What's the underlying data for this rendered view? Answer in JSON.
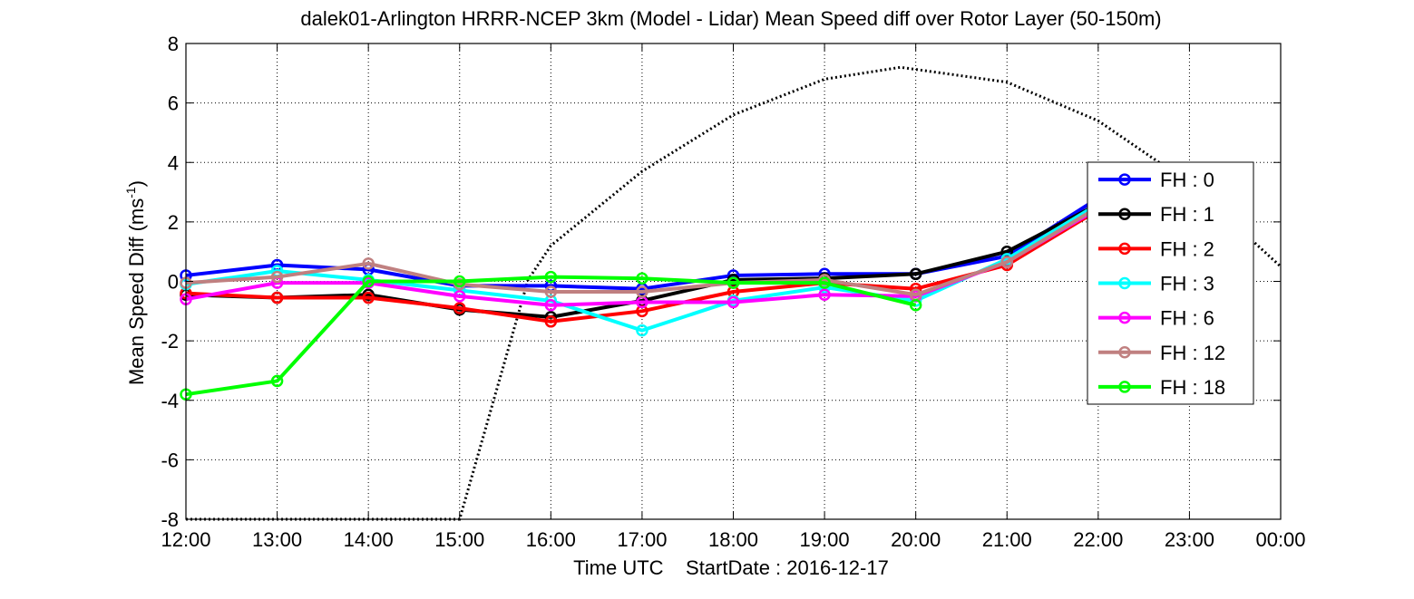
{
  "chart_data": {
    "type": "line",
    "title": "dalek01-Arlington HRRR-NCEP 3km (Model - Lidar) Mean Speed diff over Rotor Layer (50-150m)",
    "xlabel": "Time UTC    StartDate : 2016-12-17",
    "ylabel_main": "Mean Speed Diff (ms",
    "ylabel_sup": "-1",
    "ylabel_end": ")",
    "ylim": [
      -8,
      8
    ],
    "yticks": [
      -8,
      -6,
      -4,
      -2,
      0,
      2,
      4,
      6,
      8
    ],
    "x_tick_labels": [
      "12:00",
      "13:00",
      "14:00",
      "15:00",
      "16:00",
      "17:00",
      "18:00",
      "19:00",
      "20:00",
      "21:00",
      "22:00",
      "23:00",
      "00:00"
    ],
    "grid": true,
    "legend_position": "right",
    "series": [
      {
        "name": "FH : 0",
        "color": "#0000ff",
        "x": [
          "12:00",
          "13:00",
          "14:00",
          "15:00",
          "16:00",
          "17:00",
          "18:00",
          "19:00",
          "20:00",
          "21:00",
          "22:00"
        ],
        "values": [
          0.2,
          0.55,
          0.4,
          -0.15,
          -0.15,
          -0.25,
          0.2,
          0.25,
          0.25,
          0.85,
          2.8
        ]
      },
      {
        "name": "FH : 1",
        "color": "#000000",
        "x": [
          "12:00",
          "13:00",
          "14:00",
          "15:00",
          "16:00",
          "17:00",
          "18:00",
          "19:00",
          "20:00",
          "21:00",
          "22:00"
        ],
        "values": [
          -0.45,
          -0.55,
          -0.45,
          -0.95,
          -1.2,
          -0.65,
          0.05,
          0.1,
          0.25,
          1.0,
          2.6
        ]
      },
      {
        "name": "FH : 2",
        "color": "#ff0000",
        "x": [
          "12:00",
          "13:00",
          "14:00",
          "15:00",
          "16:00",
          "17:00",
          "18:00",
          "19:00",
          "20:00",
          "21:00",
          "22:00"
        ],
        "values": [
          -0.4,
          -0.55,
          -0.55,
          -0.9,
          -1.35,
          -1.0,
          -0.35,
          -0.05,
          -0.25,
          0.55,
          2.4
        ]
      },
      {
        "name": "FH : 3",
        "color": "#00ffff",
        "x": [
          "12:00",
          "13:00",
          "14:00",
          "15:00",
          "16:00",
          "17:00",
          "18:00",
          "19:00",
          "20:00",
          "21:00",
          "22:00"
        ],
        "values": [
          -0.1,
          0.35,
          0.05,
          -0.3,
          -0.65,
          -1.65,
          -0.65,
          -0.2,
          -0.65,
          0.75,
          2.6
        ]
      },
      {
        "name": "FH : 6",
        "color": "#ff00ff",
        "x": [
          "12:00",
          "13:00",
          "14:00",
          "15:00",
          "16:00",
          "17:00",
          "18:00",
          "19:00",
          "20:00",
          "21:00",
          "22:00"
        ],
        "values": [
          -0.6,
          -0.05,
          -0.05,
          -0.5,
          -0.8,
          -0.7,
          -0.7,
          -0.45,
          -0.5,
          0.65,
          2.45
        ]
      },
      {
        "name": "FH : 12",
        "color": "#c08080",
        "x": [
          "12:00",
          "13:00",
          "14:00",
          "15:00",
          "16:00",
          "17:00",
          "18:00",
          "19:00",
          "20:00",
          "21:00",
          "22:00"
        ],
        "values": [
          -0.05,
          0.15,
          0.6,
          -0.1,
          -0.35,
          -0.35,
          -0.05,
          0.05,
          -0.45,
          0.65,
          2.5
        ]
      },
      {
        "name": "FH : 18",
        "color": "#00ff00",
        "x": [
          "12:00",
          "13:00",
          "14:00",
          "15:00",
          "16:00",
          "17:00",
          "18:00",
          "19:00",
          "20:00"
        ],
        "values": [
          -3.8,
          -3.35,
          0.0,
          0.0,
          0.15,
          0.1,
          -0.05,
          -0.05,
          -0.8
        ]
      },
      {
        "name": "",
        "color": "#000000",
        "style": "dotted",
        "x": [
          "12:00",
          "13:00",
          "14:00",
          "15:00",
          "15:45",
          "16:00",
          "17:00",
          "18:00",
          "19:00",
          "19:50",
          "21:00",
          "22:00",
          "23:00",
          "00:00"
        ],
        "values": [
          -8.0,
          -8.0,
          -8.0,
          -8.0,
          0.05,
          1.2,
          3.7,
          5.6,
          6.8,
          7.2,
          6.7,
          5.4,
          3.3,
          0.5
        ]
      }
    ]
  },
  "colors": {
    "background": "#ffffff",
    "axes": "#000000",
    "grid": "#000000"
  }
}
